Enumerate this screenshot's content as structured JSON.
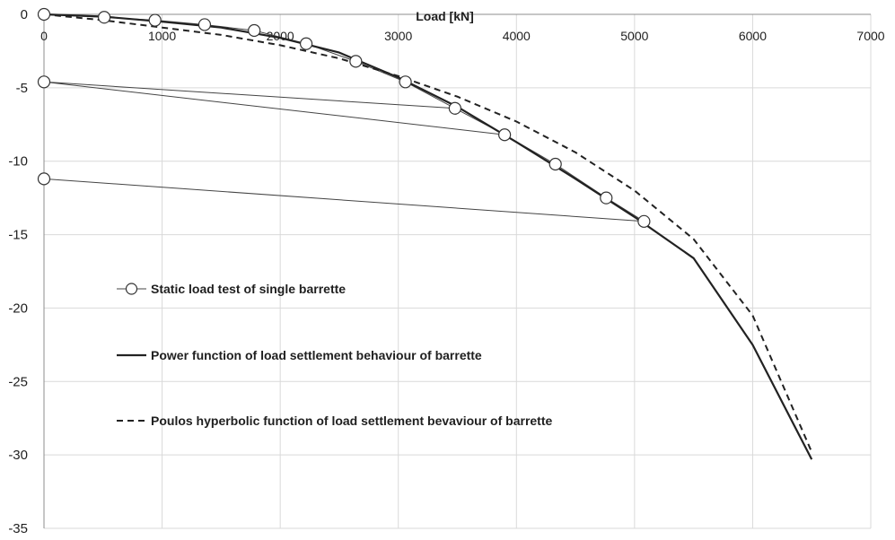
{
  "chart_data": {
    "type": "line",
    "title": "",
    "xlabel": "Load [kN]",
    "ylabel": "",
    "xlim": [
      0,
      7000
    ],
    "ylim": [
      -35,
      0
    ],
    "x_ticks": [
      0,
      1000,
      2000,
      3000,
      4000,
      5000,
      6000,
      7000
    ],
    "y_ticks": [
      0,
      -5,
      -10,
      -15,
      -20,
      -25,
      -30,
      -35
    ],
    "x_axis_position": "top",
    "grid": true,
    "series": [
      {
        "name": "Static load test of single barrette",
        "style": "thin line with open circle markers",
        "color": "#444444",
        "points": [
          [
            0,
            0
          ],
          [
            510,
            -0.2
          ],
          [
            940,
            -0.4
          ],
          [
            1360,
            -0.7
          ],
          [
            1780,
            -1.1
          ],
          [
            2220,
            -2.0
          ],
          [
            2640,
            -3.2
          ],
          [
            3060,
            -4.6
          ],
          [
            3480,
            -6.4
          ],
          [
            0,
            -4.6
          ],
          [
            3480,
            -6.4
          ],
          [
            3900,
            -8.2
          ],
          [
            0,
            -4.6
          ],
          [
            3900,
            -8.2
          ],
          [
            4330,
            -10.2
          ],
          [
            4760,
            -12.5
          ],
          [
            5080,
            -14.1
          ],
          [
            0,
            -11.2
          ],
          [
            5080,
            -14.1
          ]
        ]
      },
      {
        "name": "Power function of load settlement behaviour of barrette",
        "style": "solid line",
        "color": "#222222",
        "points": [
          [
            0,
            0
          ],
          [
            500,
            -0.15
          ],
          [
            1000,
            -0.5
          ],
          [
            1500,
            -0.9
          ],
          [
            2000,
            -1.6
          ],
          [
            2500,
            -2.6
          ],
          [
            3000,
            -4.3
          ],
          [
            3500,
            -6.3
          ],
          [
            4000,
            -8.7
          ],
          [
            4500,
            -11.2
          ],
          [
            5000,
            -13.8
          ],
          [
            5500,
            -16.6
          ],
          [
            6000,
            -22.5
          ],
          [
            6500,
            -30.3
          ]
        ]
      },
      {
        "name": "Poulos hyperbolic function of load settlement bevaviour of barrette",
        "style": "dashed line",
        "color": "#222222",
        "points": [
          [
            0,
            0
          ],
          [
            500,
            -0.4
          ],
          [
            1000,
            -0.9
          ],
          [
            1500,
            -1.4
          ],
          [
            2000,
            -2.1
          ],
          [
            2500,
            -3.0
          ],
          [
            3000,
            -4.2
          ],
          [
            3500,
            -5.6
          ],
          [
            4000,
            -7.3
          ],
          [
            4500,
            -9.4
          ],
          [
            5000,
            -12.0
          ],
          [
            5500,
            -15.3
          ],
          [
            6000,
            -20.5
          ],
          [
            6500,
            -29.8
          ]
        ]
      }
    ],
    "legend": {
      "placement": "inside-left",
      "items": [
        "Static load test of single barrette",
        "Power function of load settlement behaviour of barrette",
        "Poulos hyperbolic function of load settlement bevaviour of barrette"
      ]
    }
  }
}
